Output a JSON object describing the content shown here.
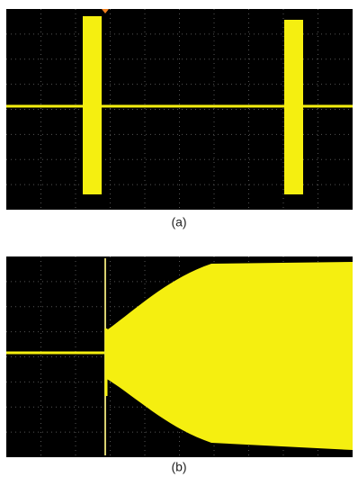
{
  "panels": [
    {
      "caption": "(a)"
    },
    {
      "caption": "(b)"
    }
  ]
}
